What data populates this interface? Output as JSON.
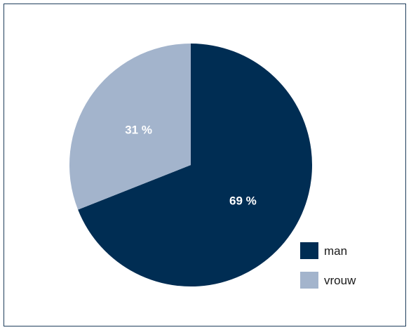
{
  "chart_data": {
    "type": "pie",
    "title": "",
    "slices": [
      {
        "label": "man",
        "value": 69,
        "display": "69 %",
        "color": "#002d53"
      },
      {
        "label": "vrouw",
        "value": 31,
        "display": "31 %",
        "color": "#a3b4cc"
      }
    ],
    "start_angle_deg": 0,
    "direction": "clockwise",
    "legend_position": "bottom-right"
  }
}
